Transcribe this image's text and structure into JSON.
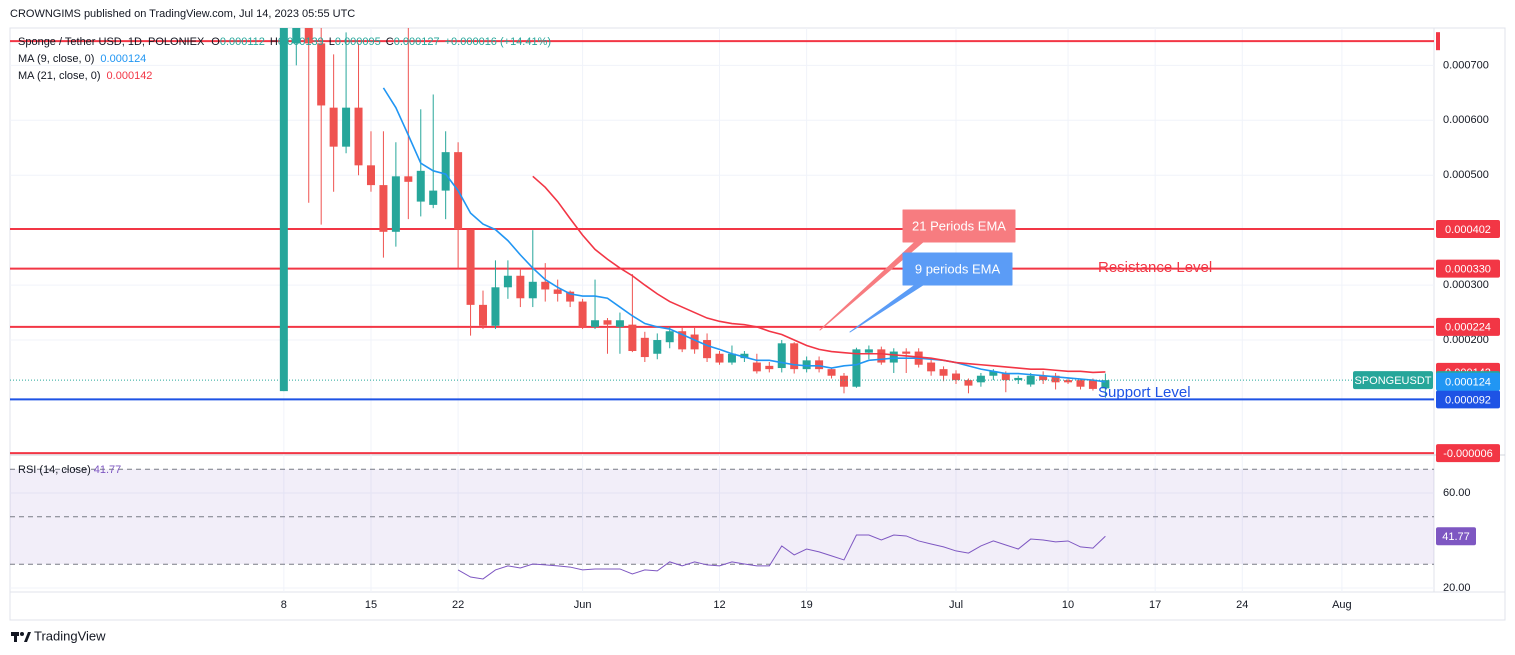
{
  "header": "CROWNGIMS published on TradingView.com, Jul 14, 2023 05:55 UTC",
  "footer": "TradingView",
  "chart_data": {
    "type": "candlestick",
    "title": "Sponge / Tether USD, 1D, POLONIEX",
    "ohlc_keys": [
      "O",
      "H",
      "L",
      "C"
    ],
    "change": "+0.000016 (+14.41%)",
    "symbol": "SPONGEUSDT",
    "up_color": "#26a69a",
    "down_color": "#ef5350",
    "x": [
      0,
      1,
      2,
      3,
      4,
      5,
      6,
      7,
      8,
      9,
      10,
      11,
      12,
      13,
      14,
      15,
      16,
      17,
      18,
      19,
      20,
      21,
      22,
      23,
      24,
      25,
      26,
      27,
      28,
      29,
      30,
      31,
      32,
      33,
      34,
      35,
      36,
      37,
      38,
      39,
      40,
      41,
      42,
      43,
      44,
      45,
      46,
      47,
      48,
      49,
      50,
      51,
      52,
      53,
      54,
      55,
      56,
      57,
      58,
      59,
      60,
      61,
      62,
      63,
      64,
      65,
      66
    ],
    "open": [
      0.000107,
      0.00074,
      0.00078,
      0.00074,
      0.000623,
      0.000552,
      0.000623,
      0.000518,
      0.000482,
      0.000397,
      0.000498,
      0.000452,
      0.000446,
      0.000472,
      0.000542,
      0.000401,
      0.000264,
      0.000226,
      0.000296,
      0.000317,
      0.000276,
      0.000306,
      0.000292,
      0.000288,
      0.00027,
      0.000224,
      0.000236,
      0.000224,
      0.000228,
      0.000204,
      0.000175,
      0.000196,
      0.000216,
      0.00021,
      0.0002,
      0.000175,
      0.000159,
      0.000167,
      0.000159,
      0.000153,
      0.000149,
      0.000194,
      0.000147,
      0.000163,
      0.000147,
      0.000135,
      0.000115,
      0.000177,
      0.000183,
      0.000159,
      0.000179,
      0.000179,
      0.000159,
      0.000147,
      0.000139,
      0.000127,
      0.000123,
      0.000135,
      0.000139,
      0.000127,
      0.000119,
      0.000135,
      0.000135,
      0.000127,
      0.000127,
      0.000127,
      0.000112
    ],
    "high": [
      0.00082,
      0.00082,
      0.00082,
      0.0008,
      0.00072,
      0.00076,
      0.00074,
      0.00058,
      0.00058,
      0.00056,
      0.00077,
      0.00062,
      0.000647,
      0.00058,
      0.00056,
      0.0004,
      0.00029,
      0.000345,
      0.000345,
      0.00033,
      0.0004,
      0.00034,
      0.00031,
      0.00029,
      0.000275,
      0.00031,
      0.00024,
      0.00025,
      0.00032,
      0.000215,
      0.000212,
      0.000224,
      0.000224,
      0.000222,
      0.000212,
      0.00018,
      0.00019,
      0.00018,
      0.000175,
      0.00016,
      0.0002,
      0.000196,
      0.00017,
      0.00017,
      0.00015,
      0.00014,
      0.000186,
      0.00019,
      0.000188,
      0.000185,
      0.000185,
      0.000185,
      0.000165,
      0.000152,
      0.000145,
      0.00013,
      0.00014,
      0.000147,
      0.000143,
      0.000135,
      0.00014,
      0.000143,
      0.00014,
      0.00013,
      0.00013,
      0.00013,
      0.000139
    ],
    "low": [
      0.000107,
      0.0007,
      0.00045,
      0.00041,
      0.00047,
      0.00054,
      0.0005,
      0.00047,
      0.00035,
      0.00037,
      0.00042,
      0.000425,
      0.00044,
      0.00042,
      0.00033,
      0.000208,
      0.00022,
      0.00022,
      0.000275,
      0.00026,
      0.00026,
      0.00027,
      0.00027,
      0.00026,
      0.00022,
      0.00022,
      0.000175,
      0.000175,
      0.000178,
      0.00016,
      0.000165,
      0.000185,
      0.000178,
      0.000175,
      0.00016,
      0.000155,
      0.000155,
      0.00016,
      0.000139,
      0.000141,
      0.000141,
      0.000139,
      0.000141,
      0.000141,
      0.00013,
      0.000103,
      0.000113,
      0.000165,
      0.000155,
      0.00014,
      0.00014,
      0.00015,
      0.000135,
      0.000125,
      0.00012,
      0.000103,
      0.000115,
      0.000127,
      0.000105,
      0.00012,
      0.000115,
      0.00012,
      0.00011,
      0.00012,
      0.00011,
      0.000108,
      9.5e-05
    ],
    "close": [
      0.00078,
      0.00078,
      0.00074,
      0.000627,
      0.000552,
      0.000623,
      0.000518,
      0.000482,
      0.000397,
      0.000498,
      0.000488,
      0.000508,
      0.000472,
      0.000542,
      0.000401,
      0.000264,
      0.000226,
      0.000296,
      0.000317,
      0.000276,
      0.000306,
      0.000292,
      0.000284,
      0.00027,
      0.000224,
      0.000236,
      0.000228,
      0.000236,
      0.00018,
      0.000169,
      0.0002,
      0.000216,
      0.000183,
      0.000183,
      0.000167,
      0.000159,
      0.000175,
      0.000175,
      0.000143,
      0.000147,
      0.000194,
      0.000147,
      0.000163,
      0.000147,
      0.000135,
      0.000115,
      0.000183,
      0.000183,
      0.000159,
      0.000179,
      0.000175,
      0.000155,
      0.000143,
      0.000135,
      0.000127,
      0.000117,
      0.000135,
      0.000143,
      0.000127,
      0.000131,
      0.000135,
      0.000127,
      0.000123,
      0.000123,
      0.000115,
      0.000111,
      0.000127
    ],
    "series": [
      {
        "name": "MA (9, close, 0)",
        "color": "#2196f3",
        "values": [
          null,
          null,
          null,
          null,
          null,
          null,
          null,
          null,
          0.000659,
          0.000623,
          0.000573,
          0.000522,
          0.000508,
          0.000502,
          0.000472,
          0.000431,
          0.000411,
          0.000401,
          0.000381,
          0.000355,
          0.000331,
          0.00031,
          0.000296,
          0.000284,
          0.00028,
          0.00028,
          0.000276,
          0.00026,
          0.000244,
          0.00023,
          0.000224,
          0.00022,
          0.00021,
          0.0002,
          0.00019,
          0.000183,
          0.000175,
          0.000169,
          0.000163,
          0.000163,
          0.000159,
          0.000155,
          0.000153,
          0.000153,
          0.000149,
          0.000153,
          0.000155,
          0.000163,
          0.000165,
          0.000167,
          0.000167,
          0.000167,
          0.000165,
          0.000163,
          0.000159,
          0.000153,
          0.000147,
          0.000143,
          0.000139,
          0.000139,
          0.000137,
          0.000135,
          0.000133,
          0.000131,
          0.000129,
          0.000127,
          0.000124
        ]
      },
      {
        "name": "MA (21, close, 0)",
        "color": "#f23645",
        "values": [
          null,
          null,
          null,
          null,
          null,
          null,
          null,
          null,
          null,
          null,
          null,
          null,
          null,
          null,
          null,
          null,
          null,
          null,
          null,
          null,
          0.000498,
          0.000478,
          0.000452,
          0.000421,
          0.000391,
          0.000365,
          0.000347,
          0.000331,
          0.000317,
          0.0003,
          0.000284,
          0.00027,
          0.00026,
          0.00025,
          0.00024,
          0.000234,
          0.00023,
          0.000228,
          0.000224,
          0.000216,
          0.00021,
          0.0002,
          0.00019,
          0.000183,
          0.000179,
          0.000177,
          0.000175,
          0.000175,
          0.000175,
          0.000173,
          0.000171,
          0.000169,
          0.000167,
          0.000163,
          0.000159,
          0.000157,
          0.000155,
          0.000153,
          0.000151,
          0.000149,
          0.000147,
          0.000147,
          0.000145,
          0.000143,
          0.000143,
          0.000141,
          0.000142
        ]
      }
    ],
    "xlim": [
      -22,
      92.4
    ],
    "xticks": [
      {
        "value": 0,
        "label": "8"
      },
      {
        "value": 7,
        "label": "15"
      },
      {
        "value": 14,
        "label": "22"
      },
      {
        "value": 24,
        "label": "Jun"
      },
      {
        "value": 35,
        "label": "12"
      },
      {
        "value": 42,
        "label": "19"
      },
      {
        "value": 54,
        "label": "Jul"
      },
      {
        "value": 63,
        "label": "10"
      },
      {
        "value": 70,
        "label": "17"
      },
      {
        "value": 77,
        "label": "24"
      },
      {
        "value": 85,
        "label": "Aug"
      }
    ],
    "ylim": [
      -9.3e-06,
      0.000768
    ],
    "yticks": [
      {
        "value": 0.0002,
        "label": "0.000200"
      },
      {
        "value": 0.0003,
        "label": "0.000300"
      },
      {
        "value": 0.0005,
        "label": "0.000500"
      },
      {
        "value": 0.0006,
        "label": "0.000600"
      },
      {
        "value": 0.0007,
        "label": "0.000700"
      }
    ],
    "grid": true,
    "levels": [
      {
        "value": 0.000744,
        "color": "#f23645"
      },
      {
        "value": 0.000402,
        "label": "0.000402",
        "color": "#f23645"
      },
      {
        "value": 0.00033,
        "label": "0.000330",
        "color": "#f23645"
      },
      {
        "value": 0.000224,
        "label": "0.000224",
        "color": "#f23645"
      },
      {
        "value": 9.2e-05,
        "label": "0.000092",
        "color": "#1e53e5"
      },
      {
        "value": -6e-06,
        "label": "-0.000006",
        "color": "#f23645"
      }
    ],
    "annotations": [
      {
        "text": "21 Periods EMA",
        "color": "#f77c80"
      },
      {
        "text": "9 periods EMA",
        "color": "#5b9cf6"
      },
      {
        "text": "Resistance Level",
        "color": "#f23645"
      },
      {
        "text": "Support Level",
        "color": "#1e53e5"
      }
    ],
    "rsi": {
      "title": "RSI (14, close)",
      "color": "#7e57c2",
      "values": [
        null,
        null,
        null,
        null,
        null,
        null,
        null,
        null,
        null,
        null,
        null,
        null,
        null,
        null,
        27.6,
        24.6,
        23.8,
        27.6,
        29.3,
        28.4,
        30.1,
        29.7,
        29.3,
        28.8,
        27.6,
        28.0,
        28.0,
        28.0,
        25.9,
        27.6,
        27.2,
        31.0,
        29.3,
        31.0,
        29.7,
        29.3,
        31.0,
        30.1,
        29.3,
        29.3,
        37.7,
        33.9,
        36.4,
        35.2,
        33.5,
        31.8,
        42.3,
        42.3,
        40.2,
        42.3,
        41.9,
        39.8,
        38.5,
        37.3,
        35.6,
        34.7,
        37.7,
        39.8,
        38.1,
        36.4,
        40.6,
        40.2,
        39.4,
        39.8,
        37.3,
        36.8,
        41.77
      ],
      "ylim": [
        18.3,
        76
      ],
      "yticks": [
        {
          "value": 60,
          "label": "60.00"
        },
        {
          "value": 20,
          "label": "20.00"
        }
      ],
      "levels": [
        70,
        50,
        30
      ]
    }
  }
}
